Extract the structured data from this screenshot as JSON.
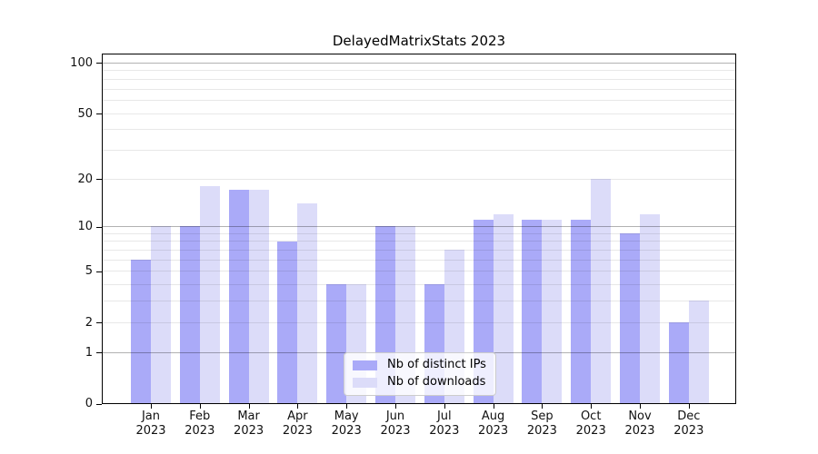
{
  "chart_data": {
    "type": "bar",
    "title": "DelayedMatrixStats 2023",
    "categories": [
      "Jan 2023",
      "Feb 2023",
      "Mar 2023",
      "Apr 2023",
      "May 2023",
      "Jun 2023",
      "Jul 2023",
      "Aug 2023",
      "Sep 2023",
      "Oct 2023",
      "Nov 2023",
      "Dec 2023"
    ],
    "series": [
      {
        "name": "Nb of distinct IPs",
        "color": "#aaaaf8",
        "values": [
          6,
          10,
          17,
          8,
          4,
          10,
          4,
          11,
          11,
          11,
          9,
          2
        ]
      },
      {
        "name": "Nb of downloads",
        "color": "#dcdcf9",
        "values": [
          10,
          18,
          17,
          14,
          4,
          10,
          7,
          12,
          11,
          20,
          12,
          3
        ]
      }
    ],
    "y_axis": {
      "scale": "log10(1+x)",
      "tick_labels": [
        0,
        1,
        2,
        5,
        10,
        20,
        50,
        100
      ],
      "major_gridlines": [
        1,
        10,
        100
      ],
      "minor_gridlines": [
        2,
        3,
        4,
        5,
        6,
        7,
        8,
        9,
        20,
        30,
        40,
        50,
        60,
        70,
        80,
        90
      ],
      "ylim": [
        0,
        114
      ]
    },
    "legend_position": "bottom-center",
    "grid": true
  },
  "colors": {
    "major_grid": "rgba(0,0,0,0.30)",
    "minor_grid": "rgba(0,0,0,0.09)",
    "axis": "#000000",
    "text": "#111111",
    "legend_border": "#cccccc",
    "legend_background": "rgba(255,255,255,0.8)"
  }
}
